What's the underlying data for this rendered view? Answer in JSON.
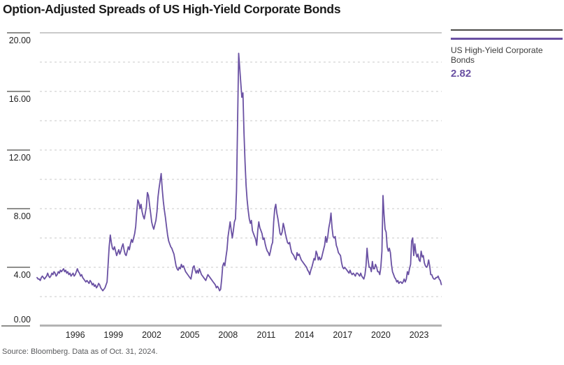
{
  "title": "Option-Adjusted Spreads of US High-Yield Corporate Bonds",
  "source_note": "Source: Bloomberg. Data as of Oct. 31, 2024.",
  "legend": {
    "series_label": "US High-Yield Corporate Bonds",
    "latest_value": "2.82"
  },
  "colors": {
    "line": "#6a51a3",
    "legend_rule": "#4a4a48",
    "legend_text": "#3c3c3c",
    "value_text": "#6a51a3",
    "grid_dashed": "#dcdcdc",
    "grid_top": "#b8b8b8",
    "axis_bottom": "#b3b3b3",
    "tick_dark": "#4a4a48",
    "axis_label": "#222222"
  },
  "chart_data": {
    "type": "line",
    "title": "Option-Adjusted Spreads of US High-Yield Corporate Bonds",
    "xlabel": "",
    "ylabel": "",
    "ylim": [
      0,
      20
    ],
    "yticks_labeled": [
      0,
      4,
      8,
      12,
      16,
      20
    ],
    "ytick_label_format": "2dp",
    "grid_step": 2,
    "grid": "dashed horizontal every 2.00",
    "xticks": [
      1996,
      1999,
      2002,
      2005,
      2008,
      2011,
      2014,
      2017,
      2020,
      2023
    ],
    "x_start": 1993.0,
    "x_end": 2024.8333,
    "frequency": "monthly",
    "legend_position": "right",
    "series": [
      {
        "name": "US High-Yield Corporate Bonds",
        "start_year": 1993,
        "start_month": 1,
        "latest_label": "2.82",
        "values": [
          3.3,
          3.2,
          3.2,
          3.1,
          3.3,
          3.4,
          3.3,
          3.2,
          3.3,
          3.4,
          3.6,
          3.4,
          3.3,
          3.4,
          3.6,
          3.5,
          3.7,
          3.6,
          3.4,
          3.5,
          3.7,
          3.6,
          3.8,
          3.7,
          3.8,
          3.9,
          3.7,
          3.8,
          3.6,
          3.7,
          3.5,
          3.6,
          3.4,
          3.5,
          3.6,
          3.4,
          3.5,
          3.7,
          3.9,
          3.7,
          3.6,
          3.4,
          3.5,
          3.3,
          3.2,
          3.1,
          3.0,
          3.1,
          3.0,
          2.9,
          3.1,
          3.0,
          2.8,
          2.9,
          2.7,
          2.8,
          2.6,
          2.7,
          2.9,
          2.8,
          2.6,
          2.5,
          2.4,
          2.5,
          2.6,
          2.8,
          3.0,
          4.2,
          5.4,
          6.2,
          5.7,
          5.3,
          5.2,
          5.4,
          5.1,
          4.8,
          5.0,
          5.2,
          4.9,
          5.1,
          5.4,
          5.6,
          5.2,
          4.9,
          4.8,
          5.1,
          5.4,
          5.2,
          5.6,
          5.9,
          5.7,
          6.0,
          6.3,
          6.8,
          7.8,
          8.6,
          8.4,
          8.0,
          8.3,
          7.8,
          7.5,
          7.3,
          7.7,
          8.1,
          9.1,
          8.9,
          8.3,
          7.7,
          7.1,
          6.8,
          6.6,
          6.9,
          7.2,
          7.8,
          8.8,
          9.4,
          9.9,
          10.4,
          9.3,
          8.5,
          7.9,
          7.4,
          6.8,
          6.2,
          5.8,
          5.6,
          5.4,
          5.3,
          5.1,
          4.9,
          4.5,
          4.1,
          3.9,
          3.8,
          4.0,
          3.9,
          4.2,
          4.0,
          4.1,
          3.9,
          3.7,
          3.6,
          3.5,
          3.4,
          3.3,
          3.2,
          3.6,
          4.0,
          4.1,
          3.8,
          3.6,
          3.8,
          3.6,
          3.9,
          3.7,
          3.5,
          3.4,
          3.3,
          3.2,
          3.1,
          3.3,
          3.5,
          3.4,
          3.3,
          3.2,
          3.1,
          3.0,
          2.9,
          2.8,
          2.6,
          2.7,
          2.6,
          2.4,
          2.5,
          3.2,
          4.1,
          4.3,
          4.1,
          4.7,
          5.2,
          6.1,
          6.6,
          7.1,
          6.5,
          6.0,
          6.5,
          7.1,
          7.3,
          9.2,
          14.0,
          18.6,
          17.6,
          16.6,
          15.6,
          15.9,
          13.2,
          11.2,
          9.6,
          8.6,
          7.9,
          7.3,
          7.0,
          7.2,
          6.5,
          6.3,
          6.1,
          5.9,
          5.5,
          6.5,
          7.1,
          6.7,
          6.5,
          6.3,
          5.9,
          6.0,
          5.6,
          5.3,
          5.1,
          5.0,
          4.8,
          5.1,
          5.5,
          5.7,
          7.1,
          8.0,
          8.3,
          7.7,
          7.3,
          6.8,
          6.3,
          6.2,
          6.4,
          7.0,
          6.7,
          6.3,
          6.0,
          5.7,
          5.6,
          5.7,
          5.3,
          5.0,
          4.9,
          4.8,
          4.6,
          4.5,
          5.0,
          4.8,
          4.9,
          4.7,
          4.5,
          4.4,
          4.3,
          4.2,
          4.1,
          4.0,
          3.8,
          3.7,
          3.5,
          3.8,
          4.0,
          4.3,
          4.6,
          4.5,
          5.1,
          4.9,
          4.5,
          4.7,
          4.5,
          4.6,
          4.9,
          5.2,
          5.5,
          6.1,
          5.7,
          6.1,
          6.7,
          7.1,
          7.7,
          6.7,
          6.1,
          6.0,
          6.1,
          5.5,
          5.3,
          5.0,
          4.9,
          4.8,
          4.3,
          4.0,
          3.9,
          4.0,
          3.9,
          3.8,
          3.7,
          3.6,
          3.8,
          3.6,
          3.5,
          3.6,
          3.5,
          3.4,
          3.6,
          3.6,
          3.5,
          3.4,
          3.6,
          3.4,
          3.3,
          3.2,
          3.5,
          4.1,
          5.3,
          4.5,
          4.0,
          4.0,
          3.7,
          4.4,
          3.9,
          3.9,
          4.2,
          4.0,
          3.7,
          3.7,
          3.5,
          4.0,
          5.1,
          8.9,
          7.6,
          6.6,
          6.4,
          5.4,
          5.1,
          5.3,
          5.0,
          4.2,
          3.7,
          3.5,
          3.3,
          3.2,
          3.0,
          3.1,
          2.9,
          3.0,
          3.0,
          2.9,
          3.0,
          3.2,
          3.0,
          3.2,
          3.7,
          3.5,
          3.9,
          4.2,
          5.8,
          6.0,
          4.8,
          5.6,
          5.0,
          4.7,
          4.9,
          4.5,
          4.4,
          5.1,
          4.7,
          4.8,
          4.3,
          4.1,
          4.0,
          4.1,
          4.5,
          4.1,
          3.5,
          3.5,
          3.3,
          3.2,
          3.2,
          3.3,
          3.3,
          3.4,
          3.2,
          3.1,
          2.82
        ]
      }
    ]
  }
}
